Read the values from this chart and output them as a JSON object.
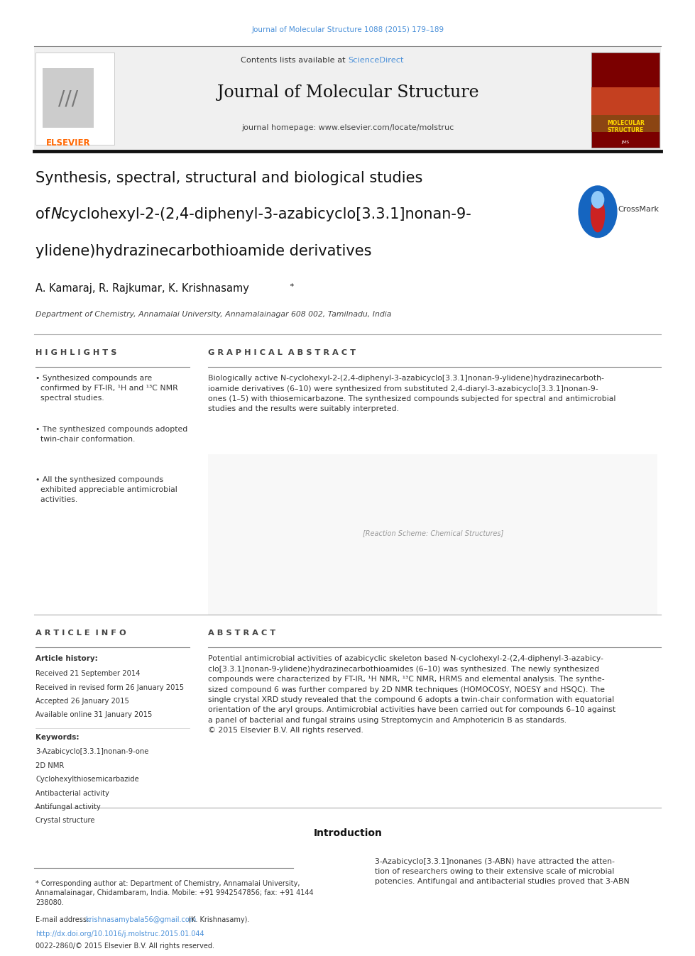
{
  "page_width": 9.92,
  "page_height": 13.23,
  "background_color": "#ffffff",
  "top_link_text": "Journal of Molecular Structure 1088 (2015) 179–189",
  "top_link_color": "#4a90d9",
  "header_bg_color": "#f0f0f0",
  "header_contents_text": "Contents lists available at ",
  "header_sciencedirect_text": "ScienceDirect",
  "header_sciencedirect_color": "#4a90d9",
  "header_journal_title": "Journal of Molecular Structure",
  "header_homepage_text": "journal homepage: www.elsevier.com/locate/molstruc",
  "divider_color": "#333333",
  "article_title_line1": "Synthesis, spectral, structural and biological studies",
  "article_title_line2_pre": "of ",
  "article_title_line2_italic": "N",
  "article_title_line2_post": "-cyclohexyl-2-(2,4-diphenyl-3-azabicyclo[3.3.1]nonan-9-",
  "article_title_line3": "ylidene)hydrazinecarbothioamide derivatives",
  "authors_text": "A. Kamaraj, R. Rajkumar, K. Krishnasamy",
  "affiliation_text": "Department of Chemistry, Annamalai University, Annamalainagar 608 002, Tamilnadu, India",
  "highlights_header": "H I G H L I G H T S",
  "highlights_bullets": [
    "• Synthesized compounds are\n  confirmed by FT-IR, ¹H and ¹³C NMR\n  spectral studies.",
    "• The synthesized compounds adopted\n  twin-chair conformation.",
    "• All the synthesized compounds\n  exhibited appreciable antimicrobial\n  activities."
  ],
  "graphical_abstract_header": "G R A P H I C A L  A B S T R A C T",
  "graphical_abstract_text": "Biologically active N-cyclohexyl-2-(2,4-diphenyl-3-azabicyclo[3.3.1]nonan-9-ylidene)hydrazinecarboth-\nioamide derivatives (6–10) were synthesized from substituted 2,4-diaryl-3-azabicyclo[3.3.1]nonan-9-\nones (1–5) with thiosemicarbazone. The synthesized compounds subjected for spectral and antimicrobial\nstudies and the results were suitably interpreted.",
  "article_info_header": "A R T I C L E  I N F O",
  "article_history_label": "Article history:",
  "article_history_lines": [
    "Received 21 September 2014",
    "Received in revised form 26 January 2015",
    "Accepted 26 January 2015",
    "Available online 31 January 2015"
  ],
  "keywords_label": "Keywords:",
  "keywords_lines": [
    "3-Azabicyclo[3.3.1]nonan-9-one",
    "2D NMR",
    "Cyclohexylthiosemicarbazide",
    "Antibacterial activity",
    "Antifungal activity",
    "Crystal structure"
  ],
  "abstract_header": "A B S T R A C T",
  "abstract_text": "Potential antimicrobial activities of azabicyclic skeleton based N-cyclohexyl-2-(2,4-diphenyl-3-azabicy-\nclo[3.3.1]nonan-9-ylidene)hydrazinecarbothioamides (6–10) was synthesized. The newly synthesized\ncompounds were characterized by FT-IR, ¹H NMR, ¹³C NMR, HRMS and elemental analysis. The synthe-\nsized compound 6 was further compared by 2D NMR techniques (HOMOCOSY, NOESY and HSQC). The\nsingle crystal XRD study revealed that the compound 6 adopts a twin-chair conformation with equatorial\norientation of the aryl groups. Antimicrobial activities have been carried out for compounds 6–10 against\na panel of bacterial and fungal strains using Streptomycin and Amphotericin B as standards.\n© 2015 Elsevier B.V. All rights reserved.",
  "introduction_header": "Introduction",
  "introduction_text": "3-Azabicyclo[3.3.1]nonanes (3-ABN) have attracted the atten-\ntion of researchers owing to their extensive scale of microbial\npotencies. Antifungal and antibacterial studies proved that 3-ABN",
  "footnote_text": "* Corresponding author at: Department of Chemistry, Annamalai University,\nAnnamalainagar, Chidambaram, India. Mobile: +91 9942547856; fax: +91 4144\n238080.",
  "email_label": "E-mail address: ",
  "email_text": "krishnasamybala56@gmail.com",
  "email_suffix": " (K. Krishnasamy).",
  "doi_text": "http://dx.doi.org/10.1016/j.molstruc.2015.01.044",
  "copyright_text": "0022-2860/© 2015 Elsevier B.V. All rights reserved.",
  "elsevier_color": "#ff6600",
  "section_divider_color": "#aaaaaa",
  "link_color": "#4a90d9"
}
